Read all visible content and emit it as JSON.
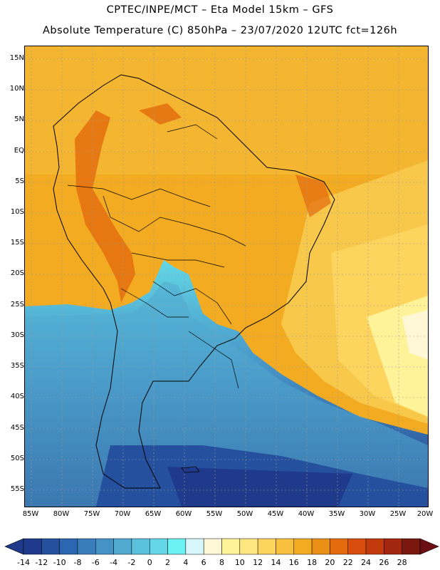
{
  "header": {
    "line1": "CPTEC/INPE/MCT –  Eta Model 15km – GFS",
    "line2": "Absolute Temperature (C) 850hPa – 23/07/2020 12UTC fct=126h"
  },
  "axes": {
    "lat_labels": [
      "15N",
      "10N",
      "5N",
      "EQ",
      "5S",
      "10S",
      "15S",
      "20S",
      "25S",
      "30S",
      "35S",
      "40S",
      "45S",
      "50S",
      "55S"
    ],
    "lon_labels": [
      "85W",
      "80W",
      "75W",
      "70W",
      "65W",
      "60W",
      "55W",
      "50W",
      "45W",
      "40W",
      "35W",
      "30W",
      "25W",
      "20W"
    ]
  },
  "colorbar": {
    "labels": [
      "-14",
      "-12",
      "-10",
      "-8",
      "-6",
      "-4",
      "-2",
      "0",
      "2",
      "4",
      "6",
      "8",
      "10",
      "12",
      "14",
      "16",
      "18",
      "20",
      "22",
      "24",
      "26",
      "28"
    ],
    "colors": [
      "#1f3a8a",
      "#24509e",
      "#2c66b0",
      "#3a7dbd",
      "#4592c6",
      "#52a9d0",
      "#5bc1dc",
      "#63d7e6",
      "#6cf0f2",
      "#d6f6fb",
      "#fff7d6",
      "#fff39a",
      "#ffe680",
      "#fcd45e",
      "#f7c13f",
      "#f3ab22",
      "#ea8f16",
      "#e36a0d",
      "#d84d0b",
      "#c23a0c",
      "#a3260f",
      "#7a1810"
    ]
  }
}
